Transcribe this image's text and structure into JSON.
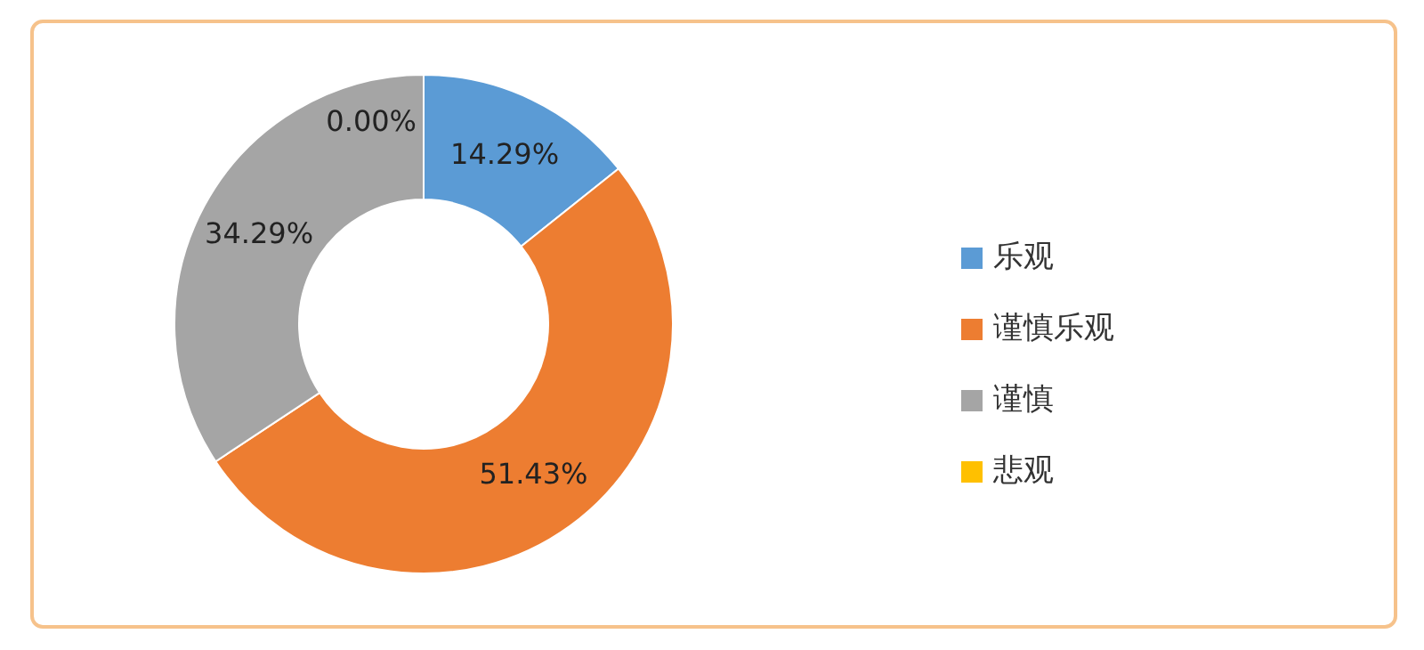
{
  "chart_data": {
    "type": "donut",
    "categories": [
      "乐观",
      "谨慎乐观",
      "谨慎",
      "悲观"
    ],
    "values": [
      14.29,
      51.43,
      34.29,
      0.0
    ],
    "colors": [
      "#5b9bd5",
      "#ed7d31",
      "#a5a5a5",
      "#ffc000"
    ],
    "value_labels": [
      "14.29%",
      "51.43%",
      "34.29%",
      "0.00%"
    ],
    "legend": "right"
  }
}
